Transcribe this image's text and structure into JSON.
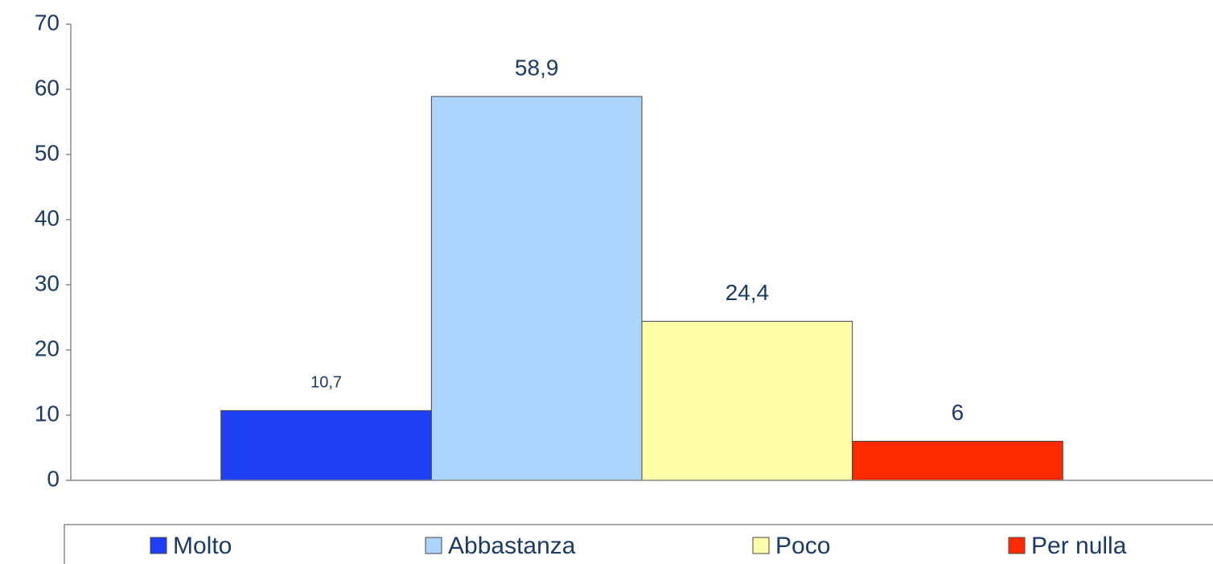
{
  "chart_data": {
    "type": "bar",
    "categories": [
      null
    ],
    "series": [
      {
        "name": "Molto",
        "color": "#1f3ff5",
        "values": [
          10.7
        ],
        "value_labels": [
          "10,7"
        ]
      },
      {
        "name": "Abbastanza",
        "color": "#acd5fe",
        "values": [
          58.9
        ],
        "value_labels": [
          "58,9"
        ]
      },
      {
        "name": "Poco",
        "color": "#ffffaa",
        "values": [
          24.4
        ],
        "value_labels": [
          "24,4"
        ]
      },
      {
        "name": "Per nulla",
        "color": "#ff2a00",
        "values": [
          6
        ],
        "value_labels": [
          "6"
        ]
      }
    ],
    "ylim": [
      0,
      70
    ],
    "yticks": [
      0,
      10,
      20,
      30,
      40,
      50,
      60,
      70
    ],
    "legend": "bottom"
  }
}
